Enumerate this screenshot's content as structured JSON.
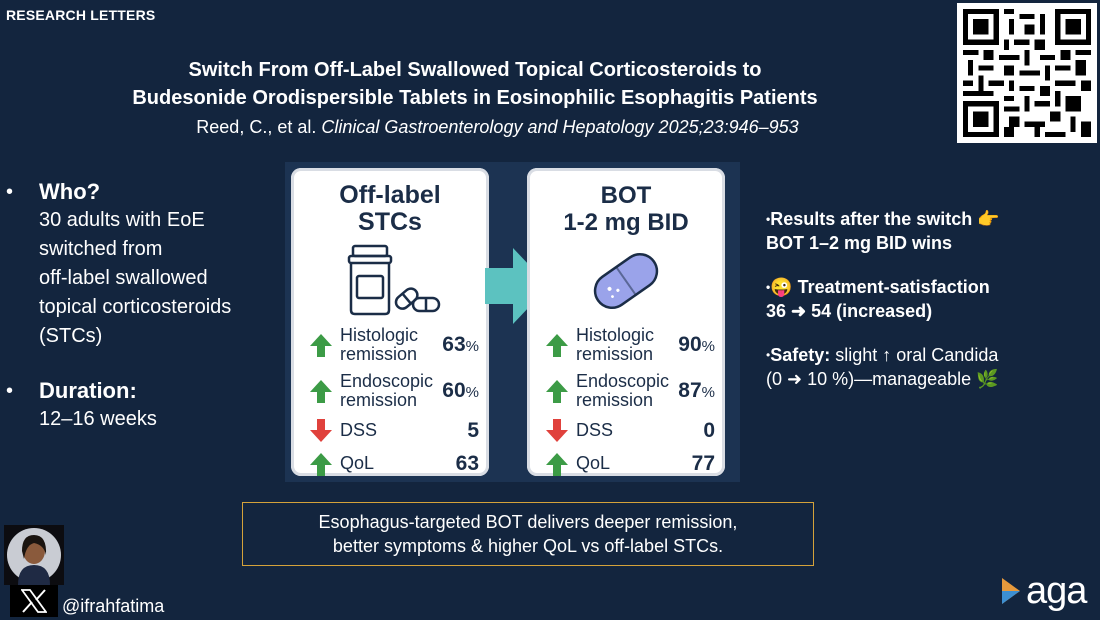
{
  "header": {
    "tag": "RESEARCH LETTERS",
    "title_line1": "Switch From Off-Label Swallowed Topical Corticosteroids to",
    "title_line2": "Budesonide Orodispersible Tablets in Eosinophilic Esophagitis Patients",
    "authors": "Reed, C., et al.",
    "journal": "Clinical Gastroenterology and Hepatology 2025;23:946–953"
  },
  "left": {
    "who_heading": "Who?",
    "who_lines": [
      "30 adults with EoE",
      "switched from",
      "off-label swallowed",
      "topical corticosteroids",
      "(STCs)"
    ],
    "duration_heading": "Duration:",
    "duration_text": "12–16 weeks",
    "bullet": "•"
  },
  "cards": {
    "left": {
      "title_line1": "Off-label",
      "title_line2": "STCs",
      "rows": [
        {
          "label1": "Histologic",
          "label2": "remission",
          "value": "63",
          "unit": "%",
          "direction": "up"
        },
        {
          "label1": "Endoscopic",
          "label2": "remission",
          "value": "60",
          "unit": "%",
          "direction": "up"
        },
        {
          "label1": "DSS",
          "label2": "",
          "value": "5",
          "unit": "",
          "direction": "down"
        },
        {
          "label1": "QoL",
          "label2": "",
          "value": "63",
          "unit": "",
          "direction": "up"
        }
      ]
    },
    "right": {
      "title_line1": "BOT",
      "title_line2": "1-2 mg BID",
      "rows": [
        {
          "label1": "Histologic",
          "label2": "remission",
          "value": "90",
          "unit": "%",
          "direction": "up"
        },
        {
          "label1": "Endoscopic",
          "label2": "remission",
          "value": "87",
          "unit": "%",
          "direction": "up"
        },
        {
          "label1": "DSS",
          "label2": "",
          "value": "0",
          "unit": "",
          "direction": "down"
        },
        {
          "label1": "QoL",
          "label2": "",
          "value": "77",
          "unit": "",
          "direction": "up"
        }
      ]
    }
  },
  "right": {
    "results_line1": "Results after the switch 👉",
    "results_line2": "BOT 1–2 mg BID wins",
    "satisfaction_emoji": "😜",
    "satisfaction_line1": "Treatment-satisfaction",
    "satisfaction_line2": "36 ➜ 54 (increased)",
    "safety_label": "Safety:",
    "safety_line1": "slight ↑ oral Candida",
    "safety_line2": "(0 ➜ 10 %)—manageable 🌿",
    "dot": "•"
  },
  "summary": {
    "line1": "Esophagus-targeted BOT delivers deeper remission,",
    "line2": "better symptoms & higher QoL vs off-label STCs."
  },
  "footer": {
    "handle": "@ifrahfatima",
    "brand": "aga"
  },
  "colors": {
    "background": "#13253e",
    "arrow_up": "#3c9b46",
    "arrow_down": "#e0413c",
    "teal_arrow": "#5cc2c0",
    "summary_border": "#d4a23a",
    "tablet": "#9aa3ea"
  }
}
